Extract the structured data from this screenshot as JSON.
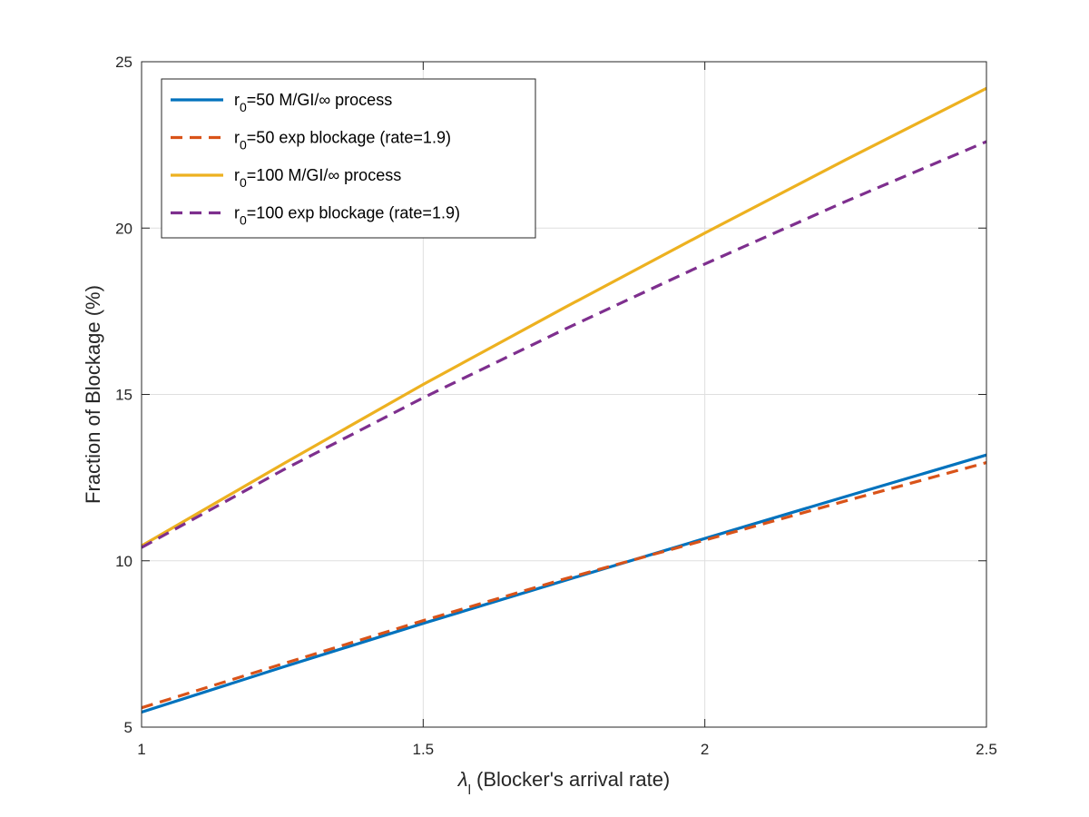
{
  "chart_data": {
    "type": "line",
    "xlabel": {
      "symbol": "λ",
      "subscript": "l",
      "text": " (Blocker's arrival rate)"
    },
    "ylabel": "Fraction of Blockage (%)",
    "xlim": [
      1,
      2.5
    ],
    "ylim": [
      5,
      25
    ],
    "xticks": [
      1,
      1.5,
      2,
      2.5
    ],
    "xtick_labels": [
      "1",
      "1.5",
      "2",
      "2.5"
    ],
    "yticks": [
      5,
      10,
      15,
      20,
      25
    ],
    "ytick_labels": [
      "5",
      "10",
      "15",
      "20",
      "25"
    ],
    "grid": true,
    "legend_position": "top-left",
    "x": [
      1.0,
      1.25,
      1.5,
      1.75,
      2.0,
      2.25,
      2.5
    ],
    "series": [
      {
        "legend": {
          "pre": "r",
          "sub": "0",
          "post": "=50 M/GI/∞ process"
        },
        "color": "#0072BD",
        "dash": "solid",
        "values": [
          5.45,
          6.8,
          8.12,
          9.4,
          10.67,
          11.93,
          13.18
        ]
      },
      {
        "legend": {
          "pre": "r",
          "sub": "0",
          "post": "=50 exp blockage (rate=1.9)"
        },
        "color": "#D95319",
        "dash": "dashed",
        "values": [
          5.58,
          6.9,
          8.2,
          9.45,
          10.62,
          11.8,
          12.95
        ]
      },
      {
        "legend": {
          "pre": "r",
          "sub": "0",
          "post": "=100 M/GI/∞ process"
        },
        "color": "#EDB120",
        "dash": "solid",
        "values": [
          10.45,
          12.9,
          15.3,
          17.6,
          19.85,
          22.05,
          24.2
        ]
      },
      {
        "legend": {
          "pre": "r",
          "sub": "0",
          "post": "=100 exp blockage (rate=1.9)"
        },
        "color": "#7E2F8E",
        "dash": "dashed",
        "values": [
          10.4,
          12.72,
          14.9,
          16.95,
          18.92,
          20.8,
          22.6
        ]
      }
    ]
  }
}
